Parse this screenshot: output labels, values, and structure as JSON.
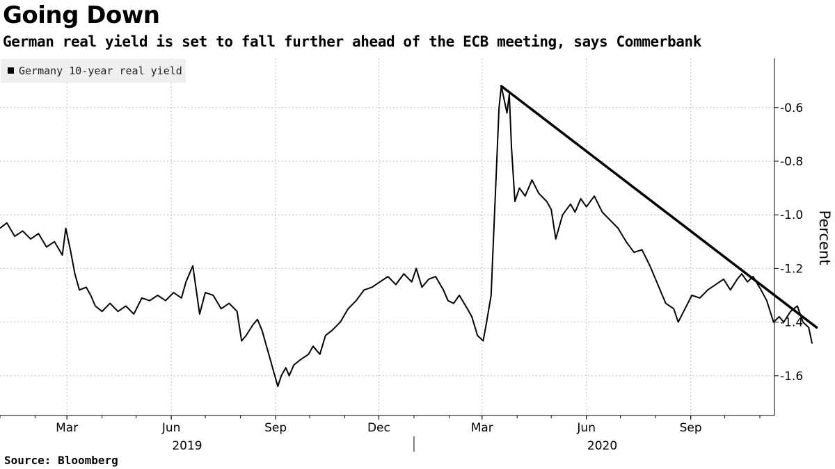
{
  "header": {
    "title": "Going Down",
    "subtitle": "German real yield is set to fall further ahead of the ECB meeting, says Commerbank"
  },
  "footer": {
    "source": "Source: Bloomberg"
  },
  "colors": {
    "series": "#000000",
    "trend": "#000000",
    "grid": "#bdbdbd",
    "legend_bg": "#efefef"
  },
  "chart_data": {
    "type": "line",
    "ylabel": "Percent",
    "ylim": [
      -1.75,
      -0.45
    ],
    "y_inverted": true,
    "y_ticks": [
      -0.6,
      -0.8,
      -1.0,
      -1.2,
      -1.4,
      -1.6
    ],
    "y_tick_labels": [
      "-0.6",
      "-0.8",
      "-1.0",
      "-1.2",
      "-1.4",
      "-1.6"
    ],
    "xlim": [
      "2019-01-01",
      "2020-11-20"
    ],
    "x_ticks": [
      {
        "date": "2019-03-01",
        "label": "Mar"
      },
      {
        "date": "2019-06-01",
        "label": "Jun"
      },
      {
        "date": "2019-09-01",
        "label": "Sep"
      },
      {
        "date": "2019-12-01",
        "label": "Dec"
      },
      {
        "date": "2020-03-01",
        "label": "Mar"
      },
      {
        "date": "2020-06-01",
        "label": "Jun"
      },
      {
        "date": "2020-09-01",
        "label": "Sep"
      }
    ],
    "x_year_labels": [
      {
        "date": "2019-06-15",
        "label": "2019"
      },
      {
        "date": "2020-06-15",
        "label": "2020"
      }
    ],
    "grid": true,
    "legend_position": "top-left",
    "series": [
      {
        "name": "Germany 10-year real yield",
        "points": [
          [
            "2019-01-01",
            -1.05
          ],
          [
            "2019-01-07",
            -1.03
          ],
          [
            "2019-01-14",
            -1.08
          ],
          [
            "2019-01-21",
            -1.06
          ],
          [
            "2019-01-28",
            -1.09
          ],
          [
            "2019-02-04",
            -1.07
          ],
          [
            "2019-02-11",
            -1.12
          ],
          [
            "2019-02-18",
            -1.1
          ],
          [
            "2019-02-25",
            -1.15
          ],
          [
            "2019-02-28",
            -1.05
          ],
          [
            "2019-03-04",
            -1.13
          ],
          [
            "2019-03-08",
            -1.22
          ],
          [
            "2019-03-12",
            -1.28
          ],
          [
            "2019-03-18",
            -1.27
          ],
          [
            "2019-03-22",
            -1.3
          ],
          [
            "2019-03-26",
            -1.34
          ],
          [
            "2019-04-01",
            -1.36
          ],
          [
            "2019-04-08",
            -1.33
          ],
          [
            "2019-04-15",
            -1.36
          ],
          [
            "2019-04-22",
            -1.34
          ],
          [
            "2019-04-29",
            -1.37
          ],
          [
            "2019-05-06",
            -1.31
          ],
          [
            "2019-05-13",
            -1.32
          ],
          [
            "2019-05-20",
            -1.3
          ],
          [
            "2019-05-27",
            -1.32
          ],
          [
            "2019-06-03",
            -1.29
          ],
          [
            "2019-06-10",
            -1.31
          ],
          [
            "2019-06-14",
            -1.25
          ],
          [
            "2019-06-20",
            -1.19
          ],
          [
            "2019-06-26",
            -1.37
          ],
          [
            "2019-07-01",
            -1.29
          ],
          [
            "2019-07-08",
            -1.3
          ],
          [
            "2019-07-15",
            -1.35
          ],
          [
            "2019-07-22",
            -1.33
          ],
          [
            "2019-07-29",
            -1.36
          ],
          [
            "2019-08-02",
            -1.47
          ],
          [
            "2019-08-06",
            -1.45
          ],
          [
            "2019-08-12",
            -1.41
          ],
          [
            "2019-08-16",
            -1.39
          ],
          [
            "2019-08-20",
            -1.43
          ],
          [
            "2019-08-26",
            -1.52
          ],
          [
            "2019-08-30",
            -1.58
          ],
          [
            "2019-09-03",
            -1.64
          ],
          [
            "2019-09-06",
            -1.6
          ],
          [
            "2019-09-10",
            -1.57
          ],
          [
            "2019-09-13",
            -1.6
          ],
          [
            "2019-09-17",
            -1.56
          ],
          [
            "2019-09-23",
            -1.54
          ],
          [
            "2019-09-30",
            -1.52
          ],
          [
            "2019-10-04",
            -1.49
          ],
          [
            "2019-10-10",
            -1.52
          ],
          [
            "2019-10-15",
            -1.45
          ],
          [
            "2019-10-21",
            -1.43
          ],
          [
            "2019-10-28",
            -1.4
          ],
          [
            "2019-11-04",
            -1.35
          ],
          [
            "2019-11-11",
            -1.32
          ],
          [
            "2019-11-18",
            -1.28
          ],
          [
            "2019-11-25",
            -1.27
          ],
          [
            "2019-12-02",
            -1.25
          ],
          [
            "2019-12-09",
            -1.23
          ],
          [
            "2019-12-16",
            -1.26
          ],
          [
            "2019-12-23",
            -1.22
          ],
          [
            "2019-12-30",
            -1.25
          ],
          [
            "2020-01-03",
            -1.2
          ],
          [
            "2020-01-08",
            -1.27
          ],
          [
            "2020-01-14",
            -1.24
          ],
          [
            "2020-01-20",
            -1.23
          ],
          [
            "2020-01-27",
            -1.28
          ],
          [
            "2020-01-31",
            -1.32
          ],
          [
            "2020-02-05",
            -1.33
          ],
          [
            "2020-02-10",
            -1.3
          ],
          [
            "2020-02-17",
            -1.35
          ],
          [
            "2020-02-21",
            -1.38
          ],
          [
            "2020-02-26",
            -1.45
          ],
          [
            "2020-03-02",
            -1.47
          ],
          [
            "2020-03-05",
            -1.4
          ],
          [
            "2020-03-09",
            -1.3
          ],
          [
            "2020-03-11",
            -1.1
          ],
          [
            "2020-03-13",
            -0.9
          ],
          [
            "2020-03-16",
            -0.6
          ],
          [
            "2020-03-18",
            -0.52
          ],
          [
            "2020-03-20",
            -0.56
          ],
          [
            "2020-03-23",
            -0.62
          ],
          [
            "2020-03-25",
            -0.55
          ],
          [
            "2020-03-27",
            -0.75
          ],
          [
            "2020-03-30",
            -0.95
          ],
          [
            "2020-04-03",
            -0.9
          ],
          [
            "2020-04-08",
            -0.93
          ],
          [
            "2020-04-14",
            -0.87
          ],
          [
            "2020-04-20",
            -0.92
          ],
          [
            "2020-04-27",
            -0.95
          ],
          [
            "2020-05-01",
            -0.98
          ],
          [
            "2020-05-05",
            -1.09
          ],
          [
            "2020-05-11",
            -1.0
          ],
          [
            "2020-05-18",
            -0.96
          ],
          [
            "2020-05-22",
            -0.99
          ],
          [
            "2020-05-27",
            -0.94
          ],
          [
            "2020-06-01",
            -0.97
          ],
          [
            "2020-06-08",
            -0.93
          ],
          [
            "2020-06-15",
            -0.99
          ],
          [
            "2020-06-22",
            -1.02
          ],
          [
            "2020-06-29",
            -1.05
          ],
          [
            "2020-07-06",
            -1.1
          ],
          [
            "2020-07-13",
            -1.14
          ],
          [
            "2020-07-20",
            -1.13
          ],
          [
            "2020-07-27",
            -1.19
          ],
          [
            "2020-08-03",
            -1.26
          ],
          [
            "2020-08-10",
            -1.33
          ],
          [
            "2020-08-17",
            -1.35
          ],
          [
            "2020-08-21",
            -1.4
          ],
          [
            "2020-08-27",
            -1.35
          ],
          [
            "2020-09-02",
            -1.3
          ],
          [
            "2020-09-09",
            -1.31
          ],
          [
            "2020-09-16",
            -1.28
          ],
          [
            "2020-09-23",
            -1.26
          ],
          [
            "2020-09-30",
            -1.24
          ],
          [
            "2020-10-06",
            -1.28
          ],
          [
            "2020-10-12",
            -1.24
          ],
          [
            "2020-10-16",
            -1.22
          ],
          [
            "2020-10-21",
            -1.25
          ],
          [
            "2020-10-26",
            -1.23
          ],
          [
            "2020-11-02",
            -1.28
          ],
          [
            "2020-11-07",
            -1.32
          ],
          [
            "2020-11-13",
            -1.4
          ],
          [
            "2020-11-18",
            -1.38
          ],
          [
            "2020-11-22",
            -1.4
          ],
          [
            "2020-11-28",
            -1.36
          ],
          [
            "2020-12-04",
            -1.34
          ],
          [
            "2020-12-09",
            -1.4
          ],
          [
            "2020-12-14",
            -1.42
          ],
          [
            "2020-12-17",
            -1.48
          ]
        ]
      }
    ],
    "trendline": {
      "start": [
        "2020-03-18",
        -0.52
      ],
      "end": [
        "2020-12-21",
        -1.42
      ]
    }
  }
}
